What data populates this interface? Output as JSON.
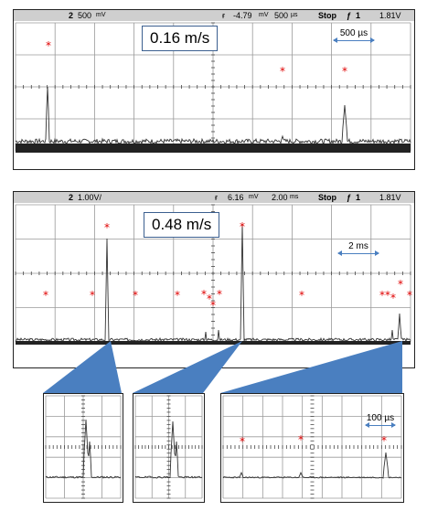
{
  "top_scope": {
    "channel": "2",
    "volts_div": "500",
    "volts_unit": "mV",
    "trigger_level": "-4.79",
    "trigger_unit": "mV",
    "time_div": "500",
    "time_unit": "µs",
    "status": "Stop",
    "trig_source": "1",
    "trig_voltage": "1.81V",
    "speed_label": "0.16 m/s",
    "scale_label": "500 µs"
  },
  "bottom_scope": {
    "channel": "2",
    "volts_div": "1.00V/",
    "trigger_level": "6.16",
    "trigger_unit": "mV",
    "time_div": "2.00",
    "time_unit": "ms",
    "status": "Stop",
    "trig_source": "1",
    "trig_voltage": "1.81V",
    "speed_label": "0.48 m/s",
    "scale_label": "2 ms"
  },
  "zoom_right": {
    "scale_label": "100 µs"
  },
  "colors": {
    "star": "#e00000",
    "callout": "#4a7fc0",
    "grid": "#9a9a9a",
    "header_bg": "#cfcfcf"
  },
  "marker_symbol": "*"
}
